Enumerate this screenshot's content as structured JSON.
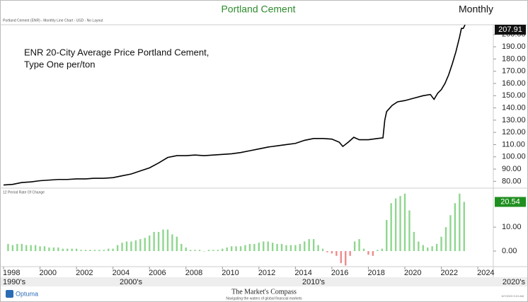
{
  "chart_data": [
    {
      "type": "line",
      "title": "Portland Cement",
      "period": "Monthly",
      "subtitle": "Portland Cement (ENR) - Monthly Line Chart - USD - No Layout",
      "annotation": [
        "ENR 20-City Average Price Portland Cement,",
        "Type One per/ton"
      ],
      "color": "#000000",
      "x": [
        1998,
        1998.5,
        1999,
        1999.5,
        2000,
        2000.5,
        2001,
        2001.5,
        2002,
        2002.5,
        2003,
        2003.5,
        2004,
        2004.5,
        2005,
        2005.5,
        2006,
        2006.5,
        2007,
        2007.5,
        2008,
        2008.5,
        2009,
        2009.5,
        2010,
        2010.5,
        2011,
        2011.5,
        2012,
        2012.5,
        2013,
        2013.5,
        2014,
        2014.5,
        2015,
        2015.5,
        2016,
        2016.4,
        2016.6,
        2016.9,
        2017.2,
        2017.5,
        2018,
        2018.5,
        2018.8,
        2018.9,
        2019,
        2019.3,
        2019.6,
        2020,
        2020.5,
        2021,
        2021.4,
        2021.6,
        2021.8,
        2022,
        2022.2,
        2022.4,
        2022.6,
        2022.8,
        2023,
        2023.1,
        2023.2,
        2023.3
      ],
      "values": [
        77,
        77.5,
        79,
        79.5,
        80.5,
        81,
        81.5,
        81.5,
        82,
        82,
        82.5,
        82.5,
        83,
        84.5,
        86,
        88.5,
        91,
        95,
        99.5,
        101,
        101,
        101.5,
        101,
        101.5,
        102,
        102.5,
        103.5,
        105,
        106.5,
        108,
        109,
        110,
        111,
        113.5,
        115,
        115,
        114.5,
        112,
        108.5,
        112,
        116,
        114,
        114,
        115,
        115.5,
        130,
        137,
        142,
        145,
        146,
        148,
        150,
        151,
        147,
        152,
        155,
        160,
        167,
        176,
        186,
        198,
        205,
        205,
        207.91
      ],
      "xlim": [
        1997.806,
        2024.85
      ],
      "ylim": [
        75,
        208
      ],
      "yticks": [
        {
          "value": 80,
          "label": "80.00"
        },
        {
          "value": 90,
          "label": "90.00"
        },
        {
          "value": 100,
          "label": "100.00"
        },
        {
          "value": 110,
          "label": "110.00"
        },
        {
          "value": 120,
          "label": "120.00"
        },
        {
          "value": 130,
          "label": "130.00"
        },
        {
          "value": 140,
          "label": "140.00"
        },
        {
          "value": 150,
          "label": "150.00"
        },
        {
          "value": 160,
          "label": "160.00"
        },
        {
          "value": 170,
          "label": "170.00"
        },
        {
          "value": 180,
          "label": "180.00"
        },
        {
          "value": 190,
          "label": "190.00"
        },
        {
          "value": 200,
          "label": "200.00"
        }
      ]
    },
    {
      "type": "bar",
      "title": "12 Period Rate Of Change",
      "colors": {
        "positive": "#8fd68f",
        "negative": "#f08a8a"
      },
      "x": [
        1998.25,
        1998.5,
        1998.75,
        1999,
        1999.25,
        1999.5,
        1999.75,
        2000,
        2000.25,
        2000.5,
        2000.75,
        2001,
        2001.25,
        2001.5,
        2001.75,
        2002,
        2002.25,
        2002.5,
        2002.75,
        2003,
        2003.25,
        2003.5,
        2003.75,
        2004,
        2004.25,
        2004.5,
        2004.75,
        2005,
        2005.25,
        2005.5,
        2005.75,
        2006,
        2006.25,
        2006.5,
        2006.75,
        2007,
        2007.25,
        2007.5,
        2007.75,
        2008,
        2008.25,
        2008.5,
        2008.75,
        2009,
        2009.25,
        2009.5,
        2009.75,
        2010,
        2010.25,
        2010.5,
        2010.75,
        2011,
        2011.25,
        2011.5,
        2011.75,
        2012,
        2012.25,
        2012.5,
        2012.75,
        2013,
        2013.25,
        2013.5,
        2013.75,
        2014,
        2014.25,
        2014.5,
        2014.75,
        2015,
        2015.25,
        2015.5,
        2015.75,
        2016,
        2016.25,
        2016.5,
        2016.75,
        2017,
        2017.25,
        2017.5,
        2017.75,
        2018,
        2018.25,
        2018.5,
        2018.75,
        2019,
        2019.25,
        2019.5,
        2019.75,
        2020,
        2020.25,
        2020.5,
        2020.75,
        2021,
        2021.25,
        2021.5,
        2021.75,
        2022,
        2022.25,
        2022.5,
        2022.75,
        2023,
        2023.25
      ],
      "values": [
        3,
        2.5,
        3,
        3,
        2.5,
        2.5,
        2.5,
        2,
        2,
        1.5,
        1.5,
        1.5,
        1,
        1,
        1,
        1,
        0.5,
        0.5,
        0.5,
        0.5,
        0.5,
        0.5,
        1,
        1,
        2.5,
        3.5,
        4,
        4,
        4.5,
        5,
        5.5,
        6.5,
        8,
        8,
        9,
        9,
        7,
        6,
        3,
        1.5,
        0.5,
        0.5,
        0.5,
        0,
        0.5,
        0.5,
        0.5,
        1,
        1.5,
        2,
        2,
        2,
        2.5,
        3,
        3,
        3.5,
        4,
        4,
        3.5,
        3,
        3,
        2.5,
        2.5,
        2.5,
        3,
        4,
        5,
        5,
        2.5,
        1,
        -0.5,
        -1,
        -2,
        -5,
        -6,
        -2,
        4,
        5,
        1,
        -1.5,
        -2,
        0.5,
        1,
        13,
        20,
        22,
        23,
        24,
        17,
        8,
        4,
        2.5,
        1.5,
        2,
        3,
        6,
        10,
        15,
        20,
        24,
        20.54
      ],
      "xlim": [
        1997.806,
        2024.85
      ],
      "ylim": [
        -6.5,
        26
      ],
      "yticks": [
        {
          "value": 0,
          "label": "0.00"
        },
        {
          "value": 10,
          "label": "10.00"
        }
      ],
      "xticks": [
        1998,
        2000,
        2002,
        2004,
        2006,
        2008,
        2010,
        2012,
        2014,
        2016,
        2018,
        2020,
        2022,
        2024
      ],
      "decades": [
        "1990's",
        "2000's",
        "2010's",
        "2020's"
      ]
    }
  ],
  "footer": {
    "logo": "Optuma",
    "brand": "The Market's Compass",
    "tagline": "Navigating the waters of global financial markets",
    "timestamp": "6/7/2023 9:19 AM"
  }
}
